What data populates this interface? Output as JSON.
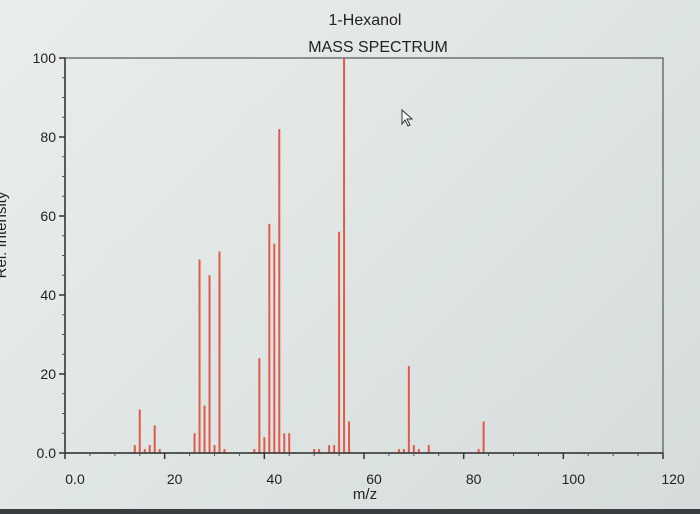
{
  "chart_data": {
    "type": "bar",
    "title": "1-Hexanol",
    "subtitle": "MASS SPECTRUM",
    "xlabel": "m/z",
    "ylabel": "Rel. Intensity",
    "xlim": [
      0,
      120
    ],
    "ylim": [
      0,
      100
    ],
    "x_ticks": [
      "0.0",
      "20",
      "40",
      "60",
      "80",
      "100",
      "120"
    ],
    "y_ticks": [
      "0.0",
      "20",
      "40",
      "60",
      "80",
      "100"
    ],
    "grid": false,
    "bar_color": "#e05a4a",
    "peaks": [
      {
        "mz": 14,
        "intensity": 2
      },
      {
        "mz": 15,
        "intensity": 11
      },
      {
        "mz": 16,
        "intensity": 1
      },
      {
        "mz": 17,
        "intensity": 2
      },
      {
        "mz": 18,
        "intensity": 7
      },
      {
        "mz": 19,
        "intensity": 1
      },
      {
        "mz": 26,
        "intensity": 5
      },
      {
        "mz": 27,
        "intensity": 49
      },
      {
        "mz": 28,
        "intensity": 12
      },
      {
        "mz": 29,
        "intensity": 45
      },
      {
        "mz": 30,
        "intensity": 2
      },
      {
        "mz": 31,
        "intensity": 51
      },
      {
        "mz": 32,
        "intensity": 1
      },
      {
        "mz": 38,
        "intensity": 1
      },
      {
        "mz": 39,
        "intensity": 24
      },
      {
        "mz": 40,
        "intensity": 4
      },
      {
        "mz": 41,
        "intensity": 58
      },
      {
        "mz": 42,
        "intensity": 53
      },
      {
        "mz": 43,
        "intensity": 82
      },
      {
        "mz": 44,
        "intensity": 5
      },
      {
        "mz": 45,
        "intensity": 5
      },
      {
        "mz": 50,
        "intensity": 1
      },
      {
        "mz": 51,
        "intensity": 1
      },
      {
        "mz": 53,
        "intensity": 2
      },
      {
        "mz": 54,
        "intensity": 2
      },
      {
        "mz": 55,
        "intensity": 56
      },
      {
        "mz": 56,
        "intensity": 100
      },
      {
        "mz": 57,
        "intensity": 8
      },
      {
        "mz": 67,
        "intensity": 1
      },
      {
        "mz": 68,
        "intensity": 1
      },
      {
        "mz": 69,
        "intensity": 22
      },
      {
        "mz": 70,
        "intensity": 2
      },
      {
        "mz": 71,
        "intensity": 1
      },
      {
        "mz": 73,
        "intensity": 2
      },
      {
        "mz": 83,
        "intensity": 1
      },
      {
        "mz": 84,
        "intensity": 8
      }
    ]
  }
}
